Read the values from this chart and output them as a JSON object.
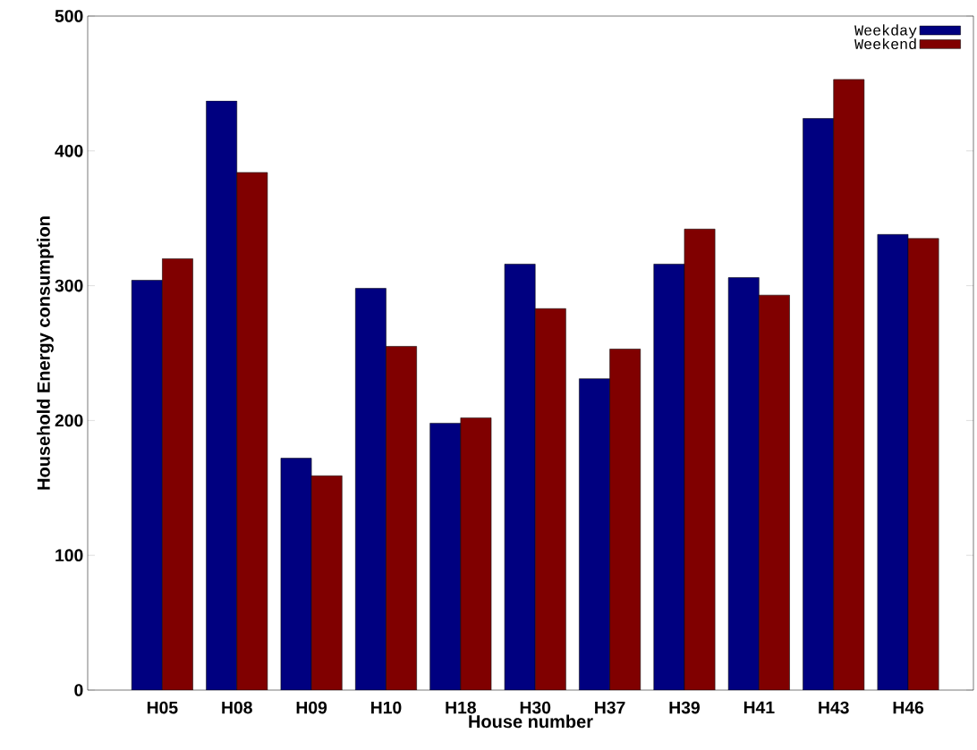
{
  "chart_data": {
    "type": "bar",
    "xlabel": "House number",
    "ylabel": "Household Energy consumption",
    "categories": [
      "H05",
      "H08",
      "H09",
      "H10",
      "H18",
      "H30",
      "H37",
      "H39",
      "H41",
      "H43",
      "H46"
    ],
    "series": [
      {
        "name": "Weekday",
        "color": "#000080",
        "values": [
          304,
          437,
          172,
          298,
          198,
          316,
          231,
          316,
          306,
          424,
          338
        ]
      },
      {
        "name": "Weekend",
        "color": "#800000",
        "values": [
          320,
          384,
          159,
          255,
          202,
          283,
          253,
          342,
          293,
          453,
          335
        ]
      }
    ],
    "ylim": [
      0,
      500
    ],
    "yticks": [
      0,
      100,
      200,
      300,
      400,
      500
    ],
    "legend": "top right",
    "grid": false
  }
}
